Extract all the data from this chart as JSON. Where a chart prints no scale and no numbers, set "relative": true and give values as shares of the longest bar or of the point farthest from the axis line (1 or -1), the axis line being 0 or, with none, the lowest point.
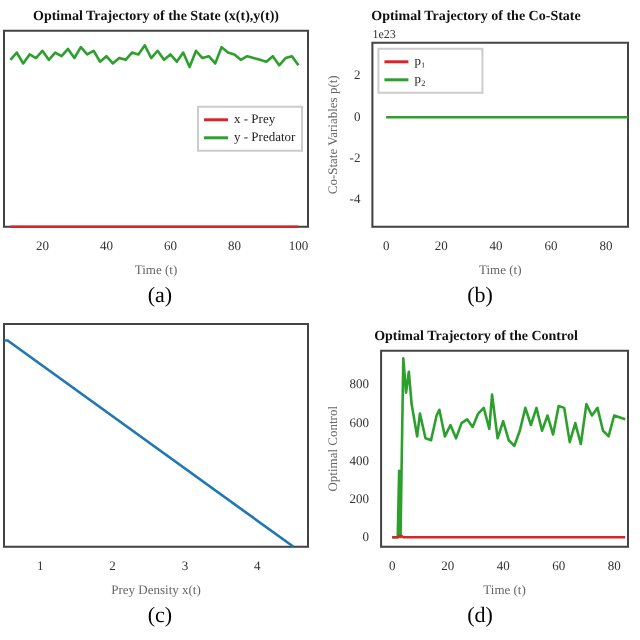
{
  "chart_data": [
    {
      "type": "line",
      "title": "Optimal Trajectory of the State (x(t),y(t))",
      "xlabel": "Time (t)",
      "relative": true,
      "xlim": [
        8,
        103
      ],
      "xticks": [
        20,
        40,
        60,
        80,
        100
      ],
      "legend": "right",
      "grid": false,
      "annotations": [
        "(a)"
      ],
      "x": [
        10,
        12,
        14,
        16,
        18,
        20,
        22,
        24,
        26,
        28,
        30,
        32,
        34,
        36,
        38,
        40,
        42,
        44,
        46,
        48,
        50,
        52,
        54,
        56,
        58,
        60,
        62,
        64,
        66,
        68,
        70,
        72,
        74,
        76,
        78,
        80,
        82,
        84,
        86,
        88,
        90,
        92,
        94,
        96,
        98,
        100
      ],
      "series": [
        {
          "name": "x - Prey",
          "color": "#d62728",
          "values": [
            0,
            0,
            0,
            0,
            0,
            0,
            0,
            0,
            0,
            0,
            0,
            0,
            0,
            0,
            0,
            0,
            0,
            0,
            0,
            0,
            0,
            0,
            0,
            0,
            0,
            0,
            0,
            0,
            0,
            0,
            0,
            0,
            0,
            0,
            0,
            0,
            0,
            0,
            0,
            0,
            0,
            0,
            0,
            0,
            0,
            0
          ]
        },
        {
          "name": "y - Predator",
          "color": "#2ca02c",
          "values": [
            0.92,
            0.96,
            0.9,
            0.95,
            0.93,
            0.97,
            0.92,
            0.96,
            0.94,
            0.98,
            0.93,
            0.99,
            0.95,
            0.97,
            0.91,
            0.94,
            0.9,
            0.93,
            0.92,
            0.96,
            0.95,
            1.0,
            0.93,
            0.97,
            0.92,
            0.95,
            0.91,
            0.96,
            0.88,
            0.97,
            0.93,
            0.94,
            0.9,
            0.99,
            0.96,
            0.95,
            0.92,
            0.94,
            0.93,
            0.92,
            0.91,
            0.94,
            0.89,
            0.93,
            0.94,
            0.89
          ]
        }
      ]
    },
    {
      "type": "line",
      "title": "Optimal Trajectory of the Co-State",
      "xlabel": "Time (t)",
      "ylabel": "Co-State Variables p(t)",
      "xlim": [
        -5,
        88
      ],
      "xticks": [
        0,
        20,
        40,
        60,
        80
      ],
      "ylim": [
        -5.3,
        3.6
      ],
      "yticks": [
        -4,
        -2,
        0,
        2
      ],
      "legend": "top left",
      "grid": false,
      "annotations": [
        "1e23",
        "(b)"
      ],
      "x": [
        0,
        88
      ],
      "series": [
        {
          "name": "p₁",
          "color": "#d62728",
          "values": [
            null,
            null
          ]
        },
        {
          "name": "p₂",
          "color": "#2ca02c",
          "values": [
            0,
            0
          ]
        }
      ]
    },
    {
      "type": "line",
      "xlabel": "Prey Density x(t)",
      "relative": true,
      "xlim": [
        0.5,
        4.7
      ],
      "xticks": [
        1,
        2,
        3,
        4
      ],
      "grid": false,
      "annotations": [
        "(c)"
      ],
      "x": [
        0.5,
        0.55,
        4.5
      ],
      "series": [
        {
          "color": "#1f77b4",
          "values": [
            1,
            1,
            0
          ]
        }
      ]
    },
    {
      "type": "line",
      "title": "Optimal Trajectory of the Control",
      "xlabel": "Time (t)",
      "ylabel": "Optimal Control",
      "xlim": [
        -4,
        85
      ],
      "xticks": [
        0,
        20,
        40,
        60,
        80
      ],
      "ylim": [
        -50,
        980
      ],
      "yticks": [
        0,
        200,
        400,
        600,
        800
      ],
      "grid": false,
      "annotations": [
        "(d)"
      ],
      "series": [
        {
          "color": "#2ca02c",
          "x": [
            0,
            2,
            2.5,
            3,
            4,
            5,
            6,
            7,
            9,
            10,
            12,
            14,
            16,
            17,
            19,
            21,
            23,
            25,
            27,
            29,
            31,
            33,
            35,
            36,
            38,
            40,
            42,
            44,
            46,
            48,
            50,
            52,
            54,
            56,
            58,
            60,
            62,
            64,
            66,
            68,
            70,
            72,
            74,
            76,
            78,
            80,
            84
          ],
          "values": [
            0,
            0,
            350,
            0,
            940,
            760,
            870,
            700,
            530,
            650,
            520,
            510,
            640,
            670,
            530,
            590,
            520,
            600,
            620,
            580,
            650,
            680,
            570,
            750,
            520,
            610,
            510,
            480,
            560,
            680,
            590,
            680,
            560,
            640,
            540,
            690,
            680,
            500,
            600,
            490,
            700,
            640,
            680,
            560,
            530,
            640,
            620
          ]
        },
        {
          "color": "#d62728",
          "x": [
            0,
            2,
            3,
            4,
            84
          ],
          "values": [
            0,
            0,
            10,
            0,
            0
          ]
        }
      ]
    }
  ]
}
